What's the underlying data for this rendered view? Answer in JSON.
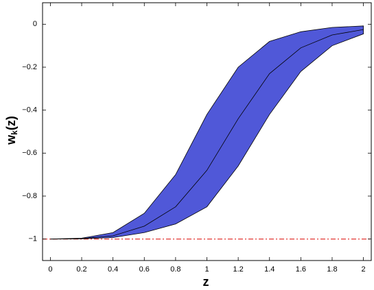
{
  "chart_data": {
    "type": "band",
    "x": [
      0,
      0.2,
      0.4,
      0.6,
      0.8,
      1,
      1.2,
      1.4,
      1.6,
      1.8,
      2
    ],
    "center": [
      -1,
      -0.998,
      -0.985,
      -0.94,
      -0.85,
      -0.68,
      -0.44,
      -0.23,
      -0.11,
      -0.05,
      -0.025
    ],
    "band_upper": [
      -1,
      -0.996,
      -0.97,
      -0.88,
      -0.7,
      -0.42,
      -0.2,
      -0.08,
      -0.035,
      -0.015,
      -0.008
    ],
    "band_lower": [
      -1,
      -0.999,
      -0.993,
      -0.97,
      -0.93,
      -0.85,
      -0.66,
      -0.42,
      -0.22,
      -0.1,
      -0.045
    ],
    "band_color": "#5058d8",
    "center_color": "#000000",
    "reference_line": {
      "value": -1,
      "color": "#e0201b"
    },
    "xlabel": "z",
    "ylabel": [
      "w",
      "k",
      "(z)"
    ],
    "xlim": [
      -0.05,
      2.05
    ],
    "ylim": [
      -1.1,
      0.1
    ],
    "xticks": [
      0,
      0.2,
      0.4,
      0.6,
      0.8,
      1,
      1.2,
      1.4,
      1.6,
      1.8,
      2
    ],
    "yticks": [
      {
        "value": -1,
        "label": "−1"
      },
      {
        "value": -0.8,
        "label": "−0.8"
      },
      {
        "value": -0.6,
        "label": "−0.6"
      },
      {
        "value": -0.4,
        "label": "−0.4"
      },
      {
        "value": -0.2,
        "label": "−0.2"
      },
      0
    ]
  }
}
